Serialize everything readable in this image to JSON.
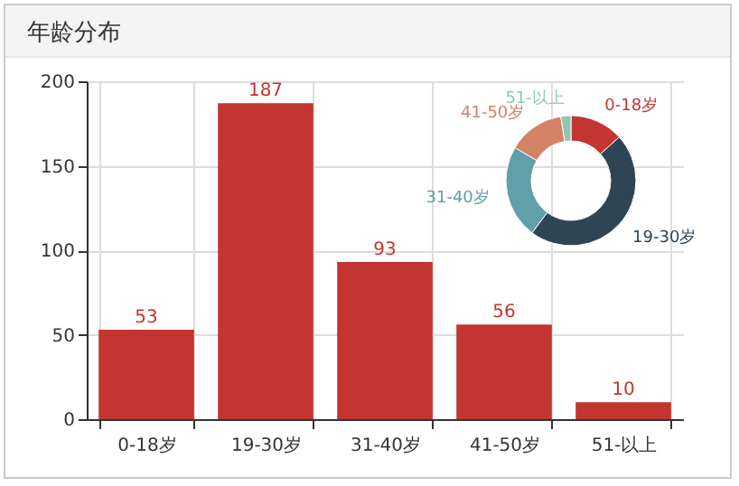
{
  "chart_data": [
    {
      "type": "bar",
      "title": "年龄分布",
      "categories": [
        "0-18岁",
        "19-30岁",
        "31-40岁",
        "41-50岁",
        "51-以上"
      ],
      "values": [
        53,
        187,
        93,
        56,
        10
      ],
      "color": "#c23531",
      "ylim": [
        0,
        200
      ],
      "yticks": [
        0,
        50,
        100,
        150,
        200
      ],
      "grid": true,
      "data_labels": true
    },
    {
      "type": "donut",
      "categories": [
        "0-18岁",
        "19-30岁",
        "31-40岁",
        "41-50岁",
        "51-以上"
      ],
      "values": [
        13.3,
        46.9,
        23.3,
        14.0,
        2.5
      ],
      "colors": [
        "#c23531",
        "#2f4554",
        "#61a0a8",
        "#d48265",
        "#91c7ae"
      ]
    }
  ]
}
